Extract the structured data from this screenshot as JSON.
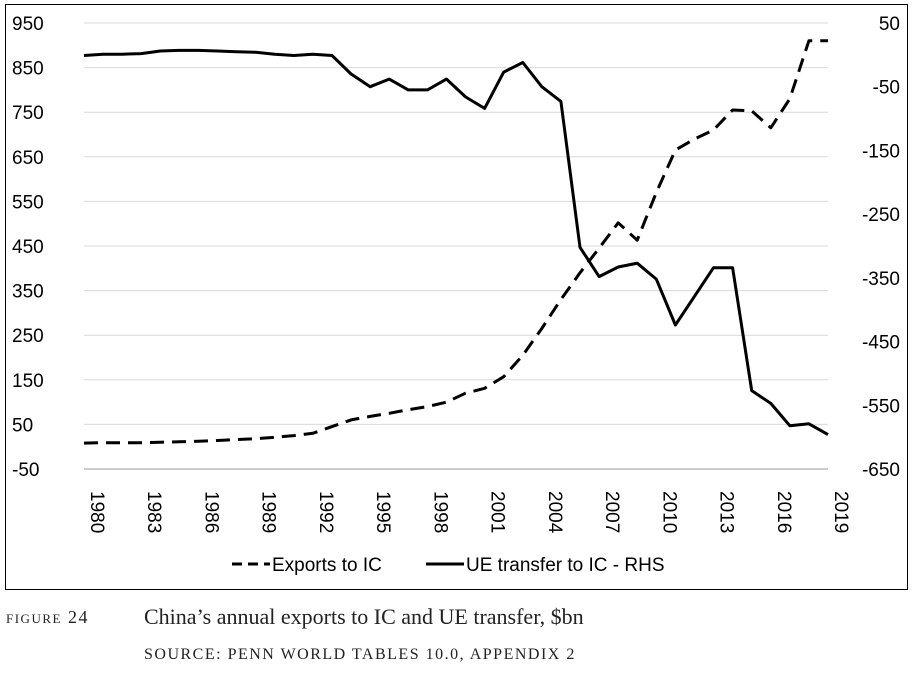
{
  "chart_data": {
    "type": "line",
    "title": "",
    "x": [
      1980,
      1981,
      1982,
      1983,
      1984,
      1985,
      1986,
      1987,
      1988,
      1989,
      1990,
      1991,
      1992,
      1993,
      1994,
      1995,
      1996,
      1997,
      1998,
      1999,
      2000,
      2001,
      2002,
      2003,
      2004,
      2005,
      2006,
      2007,
      2008,
      2009,
      2010,
      2011,
      2012,
      2013,
      2014,
      2015,
      2016,
      2017,
      2018,
      2019
    ],
    "x_tick_labels": [
      "1980",
      "1983",
      "1986",
      "1989",
      "1992",
      "1995",
      "1998",
      "2001",
      "2004",
      "2007",
      "2010",
      "2013",
      "2016",
      "2019"
    ],
    "y_left_ticks": [
      "950",
      "850",
      "750",
      "650",
      "550",
      "450",
      "350",
      "250",
      "150",
      "50",
      "-50"
    ],
    "y_right_ticks": [
      "50",
      "-50",
      "-150",
      "-250",
      "-350",
      "-450",
      "-550",
      "-650"
    ],
    "ylim_left": [
      -50,
      950
    ],
    "ylim_right": [
      -650,
      50
    ],
    "grid": true,
    "legend_position": "bottom",
    "series": [
      {
        "name": "Exports to IC",
        "axis": "left",
        "style": "dashed",
        "color": "#000000",
        "values": [
          8,
          9,
          9,
          9,
          10,
          11,
          12,
          14,
          16,
          18,
          21,
          25,
          30,
          45,
          60,
          68,
          75,
          83,
          90,
          100,
          120,
          131,
          157,
          205,
          265,
          330,
          390,
          445,
          502,
          463,
          570,
          665,
          690,
          710,
          755,
          753,
          715,
          780,
          910,
          910
        ]
      },
      {
        "name": "UE transfer to IC - RHS",
        "axis": "right",
        "style": "solid",
        "color": "#000000",
        "values": [
          -1,
          1,
          1,
          2,
          6,
          7,
          7,
          6,
          5,
          4,
          1,
          -1,
          1,
          -1,
          -30,
          -50,
          -38,
          -55,
          -55,
          -38,
          -66,
          -84,
          -27,
          -12,
          -50,
          -73,
          -302,
          -348,
          -333,
          -327,
          -352,
          -424,
          -379,
          -334,
          -334,
          -527,
          -547,
          -582,
          -579,
          -596
        ]
      }
    ]
  },
  "caption": {
    "label": "FIGURE 24",
    "title": "China’s annual exports to IC and UE transfer, $bn",
    "source": "SOURCE: PENN WORLD TABLES 10.0, APPENDIX 2"
  }
}
